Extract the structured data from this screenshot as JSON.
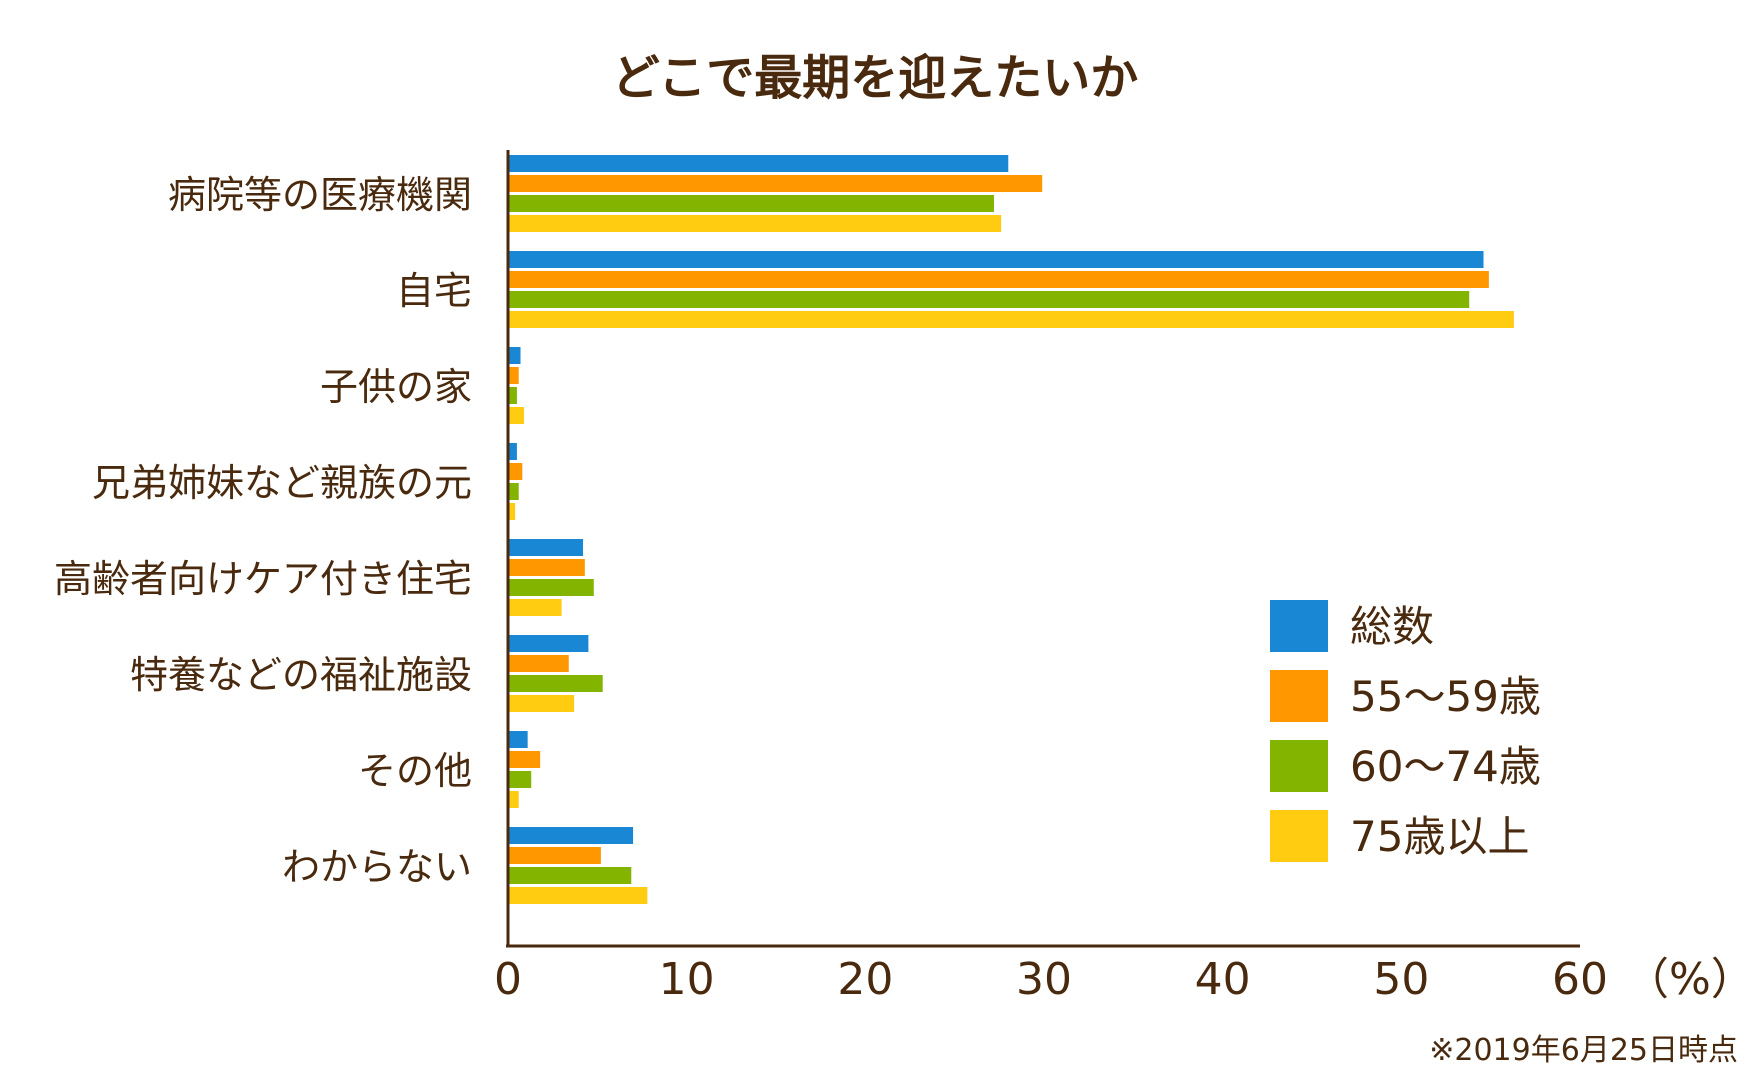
{
  "chart_data": {
    "type": "bar",
    "orientation": "horizontal",
    "title": "どこで最期を迎えたいか",
    "categories": [
      "病院等の医療機関",
      "自宅",
      "子供の家",
      "兄弟姉妹など親族の元",
      "高齢者向けケア付き住宅",
      "特養などの福祉施設",
      "その他",
      "わからない"
    ],
    "series": [
      {
        "name": "総数",
        "color": "#1a87d4",
        "values": [
          28.0,
          54.6,
          0.7,
          0.5,
          4.2,
          4.5,
          1.1,
          7.0
        ]
      },
      {
        "name": "55～59歳",
        "color": "#ff9800",
        "values": [
          29.9,
          54.9,
          0.6,
          0.8,
          4.3,
          3.4,
          1.8,
          5.2
        ]
      },
      {
        "name": "60～74歳",
        "color": "#82b400",
        "values": [
          27.2,
          53.8,
          0.5,
          0.6,
          4.8,
          5.3,
          1.3,
          6.9
        ]
      },
      {
        "name": "75歳以上",
        "color": "#ffcc11",
        "values": [
          27.6,
          56.3,
          0.9,
          0.4,
          3.0,
          3.7,
          0.6,
          7.8
        ]
      }
    ],
    "xlim": [
      0,
      60
    ],
    "xticks": [
      "0",
      "10",
      "20",
      "30",
      "40",
      "50",
      "60"
    ],
    "xunit": "（%）",
    "legend_position": "bottom-right",
    "grid": false,
    "footnote": "※2019年6月25日時点"
  }
}
